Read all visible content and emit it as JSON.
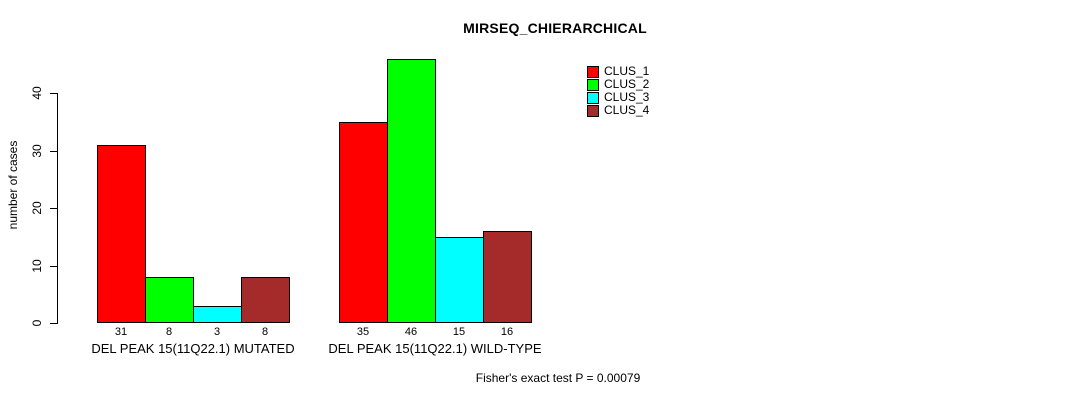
{
  "chart_data": {
    "type": "bar",
    "title": "MIRSEQ_CHIERARCHICAL",
    "ylabel": "number of cases",
    "xlabel": "",
    "ylim": [
      0,
      46
    ],
    "yticks": [
      0,
      10,
      20,
      30,
      40
    ],
    "grid": false,
    "legend_position": "top-right",
    "series": [
      {
        "name": "CLUS_1",
        "color": "#FF0000"
      },
      {
        "name": "CLUS_2",
        "color": "#00FF00"
      },
      {
        "name": "CLUS_3",
        "color": "#00FFFF"
      },
      {
        "name": "CLUS_4",
        "color": "#A52A2A"
      }
    ],
    "groups": [
      {
        "label": "DEL PEAK 15(11Q22.1) MUTATED",
        "values": [
          31,
          8,
          3,
          8
        ]
      },
      {
        "label": "DEL PEAK 15(11Q22.1) WILD-TYPE",
        "values": [
          35,
          46,
          15,
          16
        ]
      }
    ],
    "bar_value_labels_shown": true,
    "annotation": "Fisher's exact test P = 0.00079"
  }
}
